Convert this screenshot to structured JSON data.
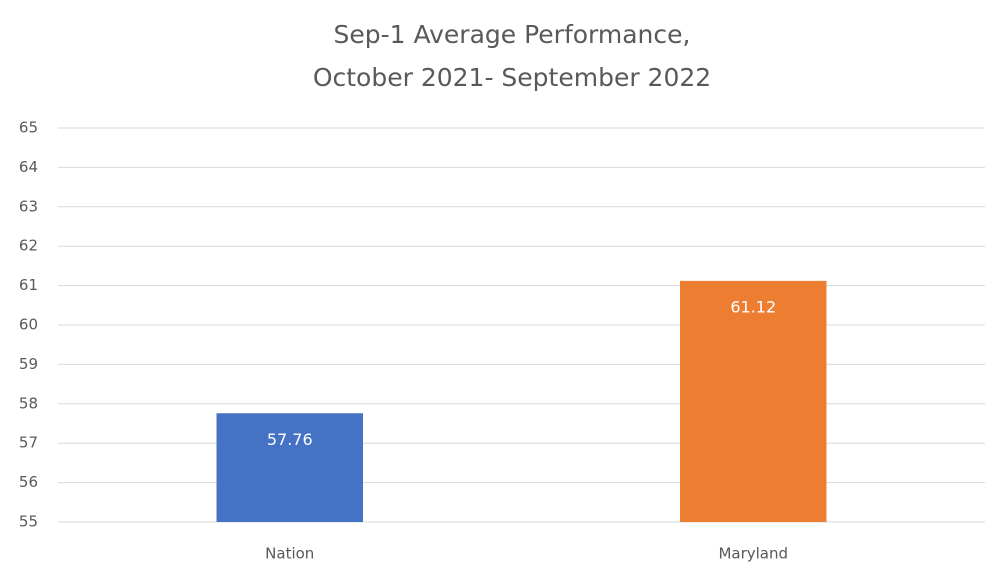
{
  "chart_data": {
    "type": "bar",
    "title": [
      "Sep-1 Average Performance,",
      "October 2021- September 2022"
    ],
    "categories": [
      "Nation",
      "Maryland"
    ],
    "values": [
      57.76,
      61.12
    ],
    "colors": [
      "#4472c4",
      "#ed7d31"
    ],
    "ylim": [
      55,
      65
    ],
    "yticks": [
      55,
      56,
      57,
      58,
      59,
      60,
      61,
      62,
      63,
      64,
      65
    ],
    "grid": true
  }
}
